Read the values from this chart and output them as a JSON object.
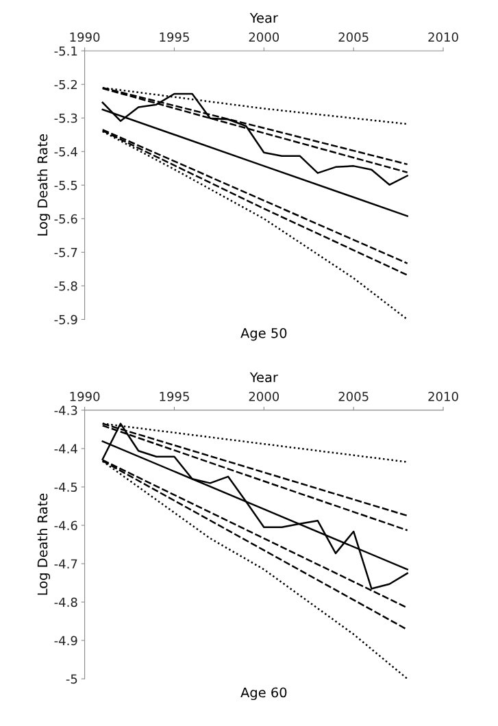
{
  "chart_data": [
    {
      "type": "line",
      "title": "Age 50",
      "xlabel": "Year",
      "ylabel": "Log Death Rate",
      "xlim": [
        1990,
        2010
      ],
      "xticks": [
        1990,
        1995,
        2000,
        2005,
        2010
      ],
      "ylim": [
        -5.9,
        -5.1
      ],
      "yticks": [
        -5.9,
        -5.8,
        -5.7,
        -5.6,
        -5.5,
        -5.4,
        -5.3,
        -5.2,
        -5.1
      ],
      "grid": false,
      "series": [
        {
          "color": "#000000",
          "line_style": "solid",
          "x": [
            1991,
            1992,
            1993,
            1994,
            1995,
            1996,
            1997,
            1998,
            1999,
            2000,
            2001,
            2002,
            2003,
            2004,
            2005,
            2006,
            2007,
            2008
          ],
          "values": [
            -5.254,
            -5.309,
            -5.268,
            -5.26,
            -5.228,
            -5.228,
            -5.301,
            -5.304,
            -5.324,
            -5.403,
            -5.413,
            -5.413,
            -5.464,
            -5.446,
            -5.443,
            -5.454,
            -5.499,
            -5.472
          ]
        },
        {
          "color": "#000000",
          "line_style": "solid",
          "x": [
            1991,
            2000,
            2008
          ],
          "values": [
            -5.275,
            -5.443,
            -5.592
          ]
        },
        {
          "color": "#000000",
          "line_style": "dotted",
          "x": [
            1991,
            2000,
            2008
          ],
          "values": [
            -5.21,
            -5.272,
            -5.318
          ]
        },
        {
          "color": "#000000",
          "line_style": "dashed",
          "x": [
            1991,
            2000,
            2008
          ],
          "values": [
            -5.21,
            -5.33,
            -5.438
          ]
        },
        {
          "color": "#000000",
          "line_style": "dashed",
          "x": [
            1991,
            2000,
            2008
          ],
          "values": [
            -5.212,
            -5.345,
            -5.462
          ]
        },
        {
          "color": "#000000",
          "line_style": "dashed",
          "x": [
            1991,
            2000,
            2008
          ],
          "values": [
            -5.335,
            -5.546,
            -5.733
          ]
        },
        {
          "color": "#000000",
          "line_style": "dashed",
          "x": [
            1991,
            2000,
            2008
          ],
          "values": [
            -5.338,
            -5.57,
            -5.768
          ]
        },
        {
          "color": "#000000",
          "line_style": "dotted",
          "x": [
            1991,
            1995,
            2000,
            2005,
            2008
          ],
          "values": [
            -5.34,
            -5.453,
            -5.6,
            -5.777,
            -5.9
          ]
        }
      ]
    },
    {
      "type": "line",
      "title": "Age 60",
      "xlabel": "Year",
      "ylabel": "Log Death Rate",
      "xlim": [
        1990,
        2010
      ],
      "xticks": [
        1990,
        1995,
        2000,
        2005,
        2010
      ],
      "ylim": [
        -5.0,
        -4.3
      ],
      "yticks": [
        {
          "value": -5.0,
          "label": "-5"
        },
        -4.9,
        -4.8,
        -4.7,
        -4.6,
        -4.5,
        -4.4,
        -4.3
      ],
      "grid": false,
      "series": [
        {
          "color": "#000000",
          "line_style": "solid",
          "x": [
            1991,
            1992,
            1993,
            1994,
            1995,
            1996,
            1997,
            1998,
            1999,
            2000,
            2001,
            2002,
            2003,
            2004,
            2005,
            2006,
            2007,
            2008
          ],
          "values": [
            -4.428,
            -4.335,
            -4.406,
            -4.421,
            -4.421,
            -4.479,
            -4.49,
            -4.473,
            -4.538,
            -4.605,
            -4.605,
            -4.596,
            -4.588,
            -4.673,
            -4.616,
            -4.765,
            -4.753,
            -4.725
          ]
        },
        {
          "color": "#000000",
          "line_style": "solid",
          "x": [
            1991,
            2000,
            2008
          ],
          "values": [
            -4.381,
            -4.558,
            -4.715
          ]
        },
        {
          "color": "#000000",
          "line_style": "dotted",
          "x": [
            1991,
            2000,
            2008
          ],
          "values": [
            -4.335,
            -4.388,
            -4.435
          ]
        },
        {
          "color": "#000000",
          "line_style": "dashed",
          "x": [
            1991,
            2000,
            2008
          ],
          "values": [
            -4.335,
            -4.462,
            -4.575
          ]
        },
        {
          "color": "#000000",
          "line_style": "dashed",
          "x": [
            1991,
            2000,
            2008
          ],
          "values": [
            -4.34,
            -4.485,
            -4.613
          ]
        },
        {
          "color": "#000000",
          "line_style": "dashed",
          "x": [
            1991,
            2000,
            2008
          ],
          "values": [
            -4.43,
            -4.634,
            -4.815
          ]
        },
        {
          "color": "#000000",
          "line_style": "dashed",
          "x": [
            1991,
            2000,
            2008
          ],
          "values": [
            -4.432,
            -4.665,
            -4.872
          ]
        },
        {
          "color": "#000000",
          "line_style": "dotted",
          "x": [
            1991,
            1997,
            2000,
            2005,
            2008
          ],
          "values": [
            -4.433,
            -4.634,
            -4.715,
            -4.884,
            -5.0
          ]
        }
      ]
    }
  ]
}
